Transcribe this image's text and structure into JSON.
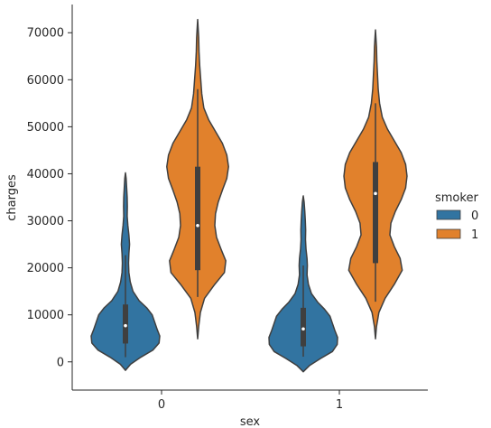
{
  "chart_data": {
    "type": "violin",
    "xlabel": "sex",
    "ylabel": "charges",
    "categories": [
      "0",
      "1"
    ],
    "ylim": [
      -6000,
      76000
    ],
    "yticks": [
      0,
      10000,
      20000,
      30000,
      40000,
      50000,
      60000,
      70000
    ],
    "grid": false,
    "legend": {
      "title": "smoker",
      "placement": "right",
      "entries": [
        {
          "label": "0",
          "color": "#3274a1"
        },
        {
          "label": "1",
          "color": "#e1812c"
        }
      ]
    },
    "series": [
      {
        "name": "0",
        "color": "#3274a1",
        "violins": [
          {
            "category": "0",
            "median": 7700,
            "q1": 3900,
            "q3": 12200,
            "whisker_low": 1000,
            "whisker_high": 22700,
            "min": -1800,
            "max": 40200,
            "profile": [
              [
                -1800,
                0.0
              ],
              [
                -500,
                0.15
              ],
              [
                1000,
                0.45
              ],
              [
                2500,
                0.8
              ],
              [
                4000,
                0.98
              ],
              [
                5500,
                1.0
              ],
              [
                7000,
                0.92
              ],
              [
                8500,
                0.85
              ],
              [
                10000,
                0.78
              ],
              [
                11500,
                0.62
              ],
              [
                13000,
                0.4
              ],
              [
                15000,
                0.22
              ],
              [
                17000,
                0.14
              ],
              [
                19000,
                0.1
              ],
              [
                21000,
                0.09
              ],
              [
                23000,
                0.1
              ],
              [
                25000,
                0.12
              ],
              [
                27000,
                0.1
              ],
              [
                29000,
                0.07
              ],
              [
                31000,
                0.05
              ],
              [
                33000,
                0.055
              ],
              [
                35000,
                0.05
              ],
              [
                37000,
                0.035
              ],
              [
                39000,
                0.02
              ],
              [
                40200,
                0.0
              ]
            ]
          },
          {
            "category": "1",
            "median": 7000,
            "q1": 3300,
            "q3": 11500,
            "whisker_low": 1100,
            "whisker_high": 20500,
            "min": -2100,
            "max": 35300,
            "profile": [
              [
                -2100,
                0.0
              ],
              [
                -800,
                0.18
              ],
              [
                700,
                0.5
              ],
              [
                2200,
                0.85
              ],
              [
                3700,
                0.99
              ],
              [
                5200,
                1.0
              ],
              [
                6700,
                0.92
              ],
              [
                8200,
                0.85
              ],
              [
                9700,
                0.78
              ],
              [
                11200,
                0.62
              ],
              [
                12700,
                0.42
              ],
              [
                14500,
                0.24
              ],
              [
                16500,
                0.15
              ],
              [
                18500,
                0.11
              ],
              [
                20500,
                0.12
              ],
              [
                22000,
                0.11
              ],
              [
                24000,
                0.08
              ],
              [
                26000,
                0.065
              ],
              [
                28000,
                0.07
              ],
              [
                30000,
                0.06
              ],
              [
                32000,
                0.045
              ],
              [
                34000,
                0.025
              ],
              [
                35300,
                0.0
              ]
            ]
          }
        ]
      },
      {
        "name": "1",
        "color": "#e1812c",
        "violins": [
          {
            "category": "0",
            "median": 29000,
            "q1": 19500,
            "q3": 41500,
            "whisker_low": 13800,
            "whisker_high": 58000,
            "min": 4900,
            "max": 72800,
            "profile": [
              [
                4900,
                0.0
              ],
              [
                7500,
                0.03
              ],
              [
                10500,
                0.08
              ],
              [
                13500,
                0.2
              ],
              [
                16500,
                0.5
              ],
              [
                19000,
                0.78
              ],
              [
                21500,
                0.82
              ],
              [
                24000,
                0.68
              ],
              [
                26500,
                0.55
              ],
              [
                29000,
                0.5
              ],
              [
                31500,
                0.52
              ],
              [
                34000,
                0.6
              ],
              [
                36500,
                0.72
              ],
              [
                39000,
                0.85
              ],
              [
                41500,
                0.9
              ],
              [
                44000,
                0.85
              ],
              [
                46500,
                0.72
              ],
              [
                49000,
                0.52
              ],
              [
                51500,
                0.32
              ],
              [
                54000,
                0.18
              ],
              [
                57000,
                0.12
              ],
              [
                60000,
                0.09
              ],
              [
                63000,
                0.06
              ],
              [
                66000,
                0.04
              ],
              [
                69000,
                0.03
              ],
              [
                72800,
                0.0
              ]
            ]
          },
          {
            "category": "1",
            "median": 35800,
            "q1": 21000,
            "q3": 42500,
            "whisker_low": 12800,
            "whisker_high": 55000,
            "min": 4900,
            "max": 70600,
            "profile": [
              [
                4900,
                0.0
              ],
              [
                7500,
                0.03
              ],
              [
                10500,
                0.1
              ],
              [
                13500,
                0.28
              ],
              [
                16500,
                0.55
              ],
              [
                19500,
                0.78
              ],
              [
                22000,
                0.72
              ],
              [
                24500,
                0.55
              ],
              [
                27000,
                0.42
              ],
              [
                29500,
                0.45
              ],
              [
                32000,
                0.58
              ],
              [
                34500,
                0.75
              ],
              [
                37000,
                0.88
              ],
              [
                39500,
                0.92
              ],
              [
                42000,
                0.88
              ],
              [
                44500,
                0.75
              ],
              [
                47000,
                0.55
              ],
              [
                49500,
                0.35
              ],
              [
                52000,
                0.2
              ],
              [
                55000,
                0.12
              ],
              [
                58000,
                0.08
              ],
              [
                61000,
                0.06
              ],
              [
                64000,
                0.04
              ],
              [
                67000,
                0.03
              ],
              [
                70600,
                0.0
              ]
            ]
          }
        ]
      }
    ]
  }
}
